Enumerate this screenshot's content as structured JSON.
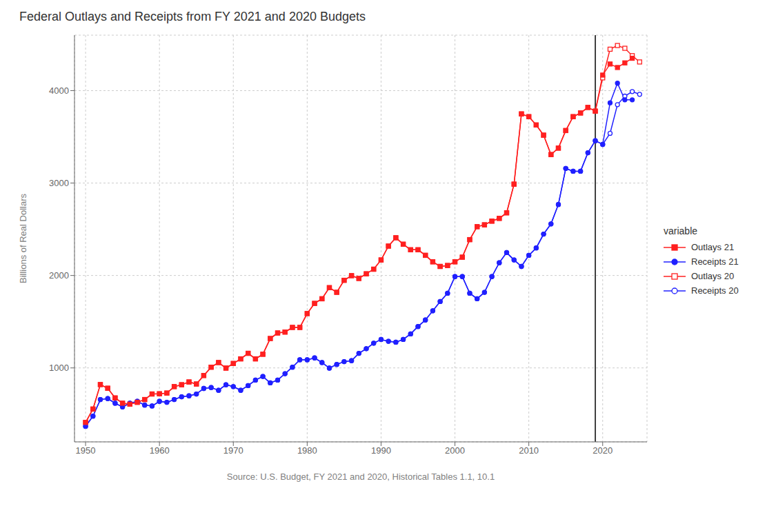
{
  "chart_data": {
    "type": "line",
    "title": "Federal Outlays and Receipts from FY 2021 and 2020 Budgets",
    "x_label": "Source: U.S. Budget, FY 2021 and 2020, Historical Tables 1.1, 10.1",
    "y_label": "Billions of Real Dollars",
    "x": [
      1950,
      1951,
      1952,
      1953,
      1954,
      1955,
      1956,
      1957,
      1958,
      1959,
      1960,
      1961,
      1962,
      1963,
      1964,
      1965,
      1966,
      1967,
      1968,
      1969,
      1970,
      1971,
      1972,
      1973,
      1974,
      1975,
      1976,
      1977,
      1978,
      1979,
      1980,
      1981,
      1982,
      1983,
      1984,
      1985,
      1986,
      1987,
      1988,
      1989,
      1990,
      1991,
      1992,
      1993,
      1994,
      1995,
      1996,
      1997,
      1998,
      1999,
      2000,
      2001,
      2002,
      2003,
      2004,
      2005,
      2006,
      2007,
      2008,
      2009,
      2010,
      2011,
      2012,
      2013,
      2014,
      2015,
      2016,
      2017,
      2018,
      2019,
      2020,
      2021,
      2022,
      2023,
      2024,
      2025
    ],
    "xlim": [
      1948.5,
      2026
    ],
    "xticks": [
      1950,
      1960,
      1970,
      1980,
      1990,
      2000,
      2010,
      2020
    ],
    "ylim": [
      200,
      4600
    ],
    "yticks": [
      1000,
      2000,
      3000,
      4000
    ],
    "grid": true,
    "legend": "right",
    "legend_title": "variable",
    "vlines": [
      2019
    ],
    "series": [
      {
        "name": "Outlays 21",
        "color": "#FF2020",
        "marker": "square",
        "values": [
          410,
          555,
          820,
          780,
          675,
          618,
          608,
          628,
          658,
          718,
          720,
          728,
          798,
          818,
          848,
          826,
          918,
          1008,
          1058,
          998,
          1048,
          1098,
          1158,
          1098,
          1148,
          1318,
          1378,
          1388,
          1438,
          1438,
          1588,
          1698,
          1748,
          1868,
          1818,
          1948,
          1998,
          1968,
          2018,
          2068,
          2168,
          2318,
          2408,
          2338,
          2278,
          2278,
          2218,
          2148,
          2098,
          2108,
          2148,
          2198,
          2388,
          2528,
          2548,
          2588,
          2618,
          2678,
          2988,
          3748,
          3718,
          3628,
          3518,
          3308,
          3378,
          3568,
          3718,
          3758,
          3818,
          3778,
          4168,
          4288,
          4250,
          4300,
          4350,
          null
        ]
      },
      {
        "name": "Receipts 21",
        "color": "#2020FF",
        "marker": "circle",
        "values": [
          368,
          478,
          658,
          668,
          618,
          578,
          618,
          638,
          598,
          588,
          638,
          628,
          658,
          688,
          698,
          718,
          778,
          788,
          758,
          818,
          798,
          758,
          808,
          868,
          908,
          838,
          868,
          938,
          1008,
          1088,
          1088,
          1108,
          1058,
          998,
          1038,
          1068,
          1078,
          1158,
          1208,
          1268,
          1308,
          1288,
          1278,
          1308,
          1368,
          1448,
          1518,
          1618,
          1718,
          1808,
          1988,
          1988,
          1808,
          1748,
          1818,
          1988,
          2138,
          2248,
          2168,
          2098,
          2218,
          2298,
          2448,
          2558,
          2768,
          3158,
          3128,
          3128,
          3328,
          3458,
          3418,
          3868,
          4080,
          3900,
          3900,
          null
        ]
      },
      {
        "name": "Outlays 20",
        "color": "#FF2020",
        "marker": "open_square",
        "values": [
          410,
          555,
          820,
          780,
          675,
          618,
          608,
          628,
          658,
          718,
          720,
          728,
          798,
          818,
          848,
          826,
          918,
          1008,
          1058,
          998,
          1048,
          1098,
          1158,
          1098,
          1148,
          1318,
          1378,
          1388,
          1438,
          1438,
          1588,
          1698,
          1748,
          1868,
          1818,
          1948,
          1998,
          1968,
          2018,
          2068,
          2168,
          2318,
          2408,
          2338,
          2278,
          2278,
          2218,
          2148,
          2098,
          2108,
          2148,
          2198,
          2388,
          2528,
          2548,
          2588,
          2618,
          2678,
          2988,
          3748,
          3718,
          3628,
          3518,
          3308,
          3378,
          3568,
          3718,
          3758,
          3818,
          3778,
          4138,
          4448,
          4488,
          4458,
          4378,
          4310
        ]
      },
      {
        "name": "Receipts 20",
        "color": "#2020FF",
        "marker": "open_circle",
        "values": [
          368,
          478,
          658,
          668,
          618,
          578,
          618,
          638,
          598,
          588,
          638,
          628,
          658,
          688,
          698,
          718,
          778,
          788,
          758,
          818,
          798,
          758,
          808,
          868,
          908,
          838,
          868,
          938,
          1008,
          1088,
          1088,
          1108,
          1058,
          998,
          1038,
          1068,
          1078,
          1158,
          1208,
          1268,
          1308,
          1288,
          1278,
          1308,
          1368,
          1448,
          1518,
          1618,
          1718,
          1808,
          1988,
          1988,
          1808,
          1748,
          1818,
          1988,
          2138,
          2248,
          2168,
          2098,
          2218,
          2298,
          2448,
          2558,
          2768,
          3158,
          3128,
          3128,
          3328,
          3458,
          3418,
          3538,
          3848,
          3940,
          3990,
          3960
        ]
      }
    ]
  }
}
